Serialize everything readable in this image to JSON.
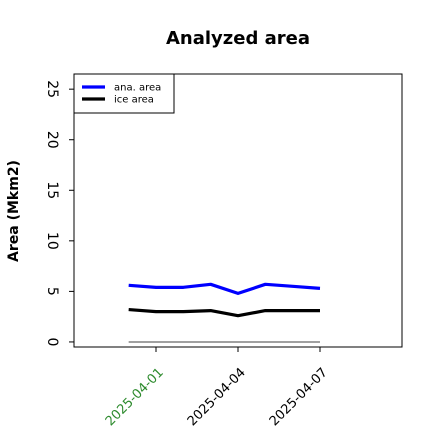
{
  "chart_data": {
    "type": "line",
    "title": "Analyzed area",
    "ylabel": "Area (Mkm2)",
    "xlabel": "",
    "ylim": [
      -0.5,
      26.5
    ],
    "xlim": [
      2,
      14
    ],
    "yticks": [
      0,
      5,
      10,
      15,
      20,
      25
    ],
    "xticks": [
      {
        "x": 5,
        "label": "2025-04-01",
        "color": "#2e8b2e"
      },
      {
        "x": 8,
        "label": "2025-04-04",
        "color": "#000000"
      },
      {
        "x": 11,
        "label": "2025-04-07",
        "color": "#000000"
      }
    ],
    "grid": false,
    "legend_position": "top-left",
    "series": [
      {
        "name": "ana. area",
        "color": "#0000ff",
        "x": [
          4,
          5,
          6,
          7,
          8,
          9,
          10,
          11
        ],
        "y": [
          5.6,
          5.4,
          5.4,
          5.7,
          4.8,
          5.7,
          5.5,
          5.3
        ]
      },
      {
        "name": "ice area",
        "color": "#000000",
        "x": [
          4,
          5,
          6,
          7,
          8,
          9,
          10,
          11
        ],
        "y": [
          3.2,
          3.0,
          3.0,
          3.1,
          2.6,
          3.1,
          3.1,
          3.1
        ]
      },
      {
        "name": "",
        "color": "#808080",
        "x": [
          4,
          11
        ],
        "y": [
          0,
          0
        ]
      }
    ]
  }
}
